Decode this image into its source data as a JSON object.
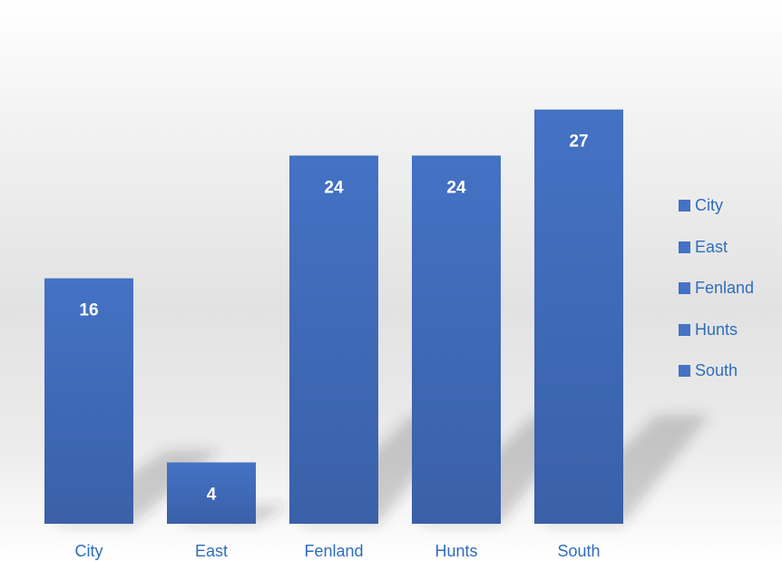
{
  "chart_data": {
    "type": "bar",
    "categories": [
      "City",
      "East",
      "Fenland",
      "Hunts",
      "South"
    ],
    "values": [
      16,
      4,
      24,
      24,
      27
    ],
    "data_labels": [
      "16",
      "4",
      "24",
      "24",
      "27"
    ],
    "title": "",
    "xlabel": "",
    "ylabel": "",
    "ylim": [
      0,
      30
    ],
    "grid": false,
    "legend": {
      "position": "right",
      "entries": [
        "City",
        "East",
        "Fenland",
        "Hunts",
        "South"
      ]
    },
    "colors": {
      "bar": "#4472c4",
      "bar_dark": "#3a60a8",
      "label_text": "#ffffff",
      "axis_text": "#2e6dbd"
    }
  }
}
